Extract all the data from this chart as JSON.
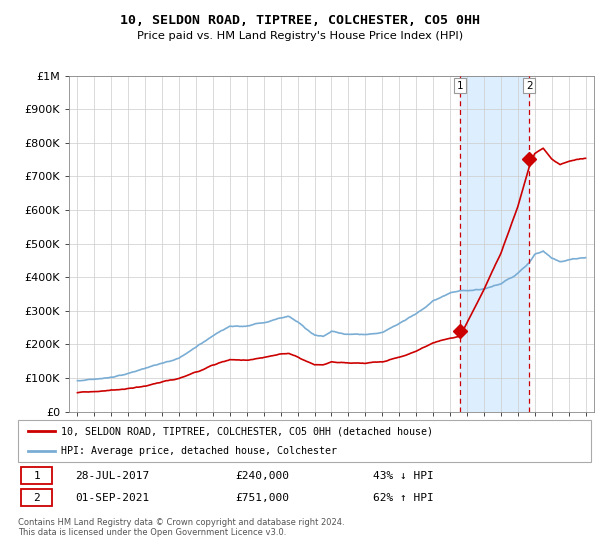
{
  "title": "10, SELDON ROAD, TIPTREE, COLCHESTER, CO5 0HH",
  "subtitle": "Price paid vs. HM Land Registry's House Price Index (HPI)",
  "legend_label_red": "10, SELDON ROAD, TIPTREE, COLCHESTER, CO5 0HH (detached house)",
  "legend_label_blue": "HPI: Average price, detached house, Colchester",
  "annotation1_date": "28-JUL-2017",
  "annotation1_price": "£240,000",
  "annotation1_hpi": "43% ↓ HPI",
  "annotation2_date": "01-SEP-2021",
  "annotation2_price": "£751,000",
  "annotation2_hpi": "62% ↑ HPI",
  "footer": "Contains HM Land Registry data © Crown copyright and database right 2024.\nThis data is licensed under the Open Government Licence v3.0.",
  "hpi_color": "#7aadd4",
  "price_color": "#cc0000",
  "vline_color": "#cc0000",
  "shade_color": "#ddeeff",
  "ylim": [
    0,
    1000000
  ],
  "ytick_labels": [
    "£0",
    "£100K",
    "£200K",
    "£300K",
    "£400K",
    "£500K",
    "£600K",
    "£700K",
    "£800K",
    "£900K",
    "£1M"
  ],
  "sale1_x": 2017.57,
  "sale1_y": 240000,
  "sale2_x": 2021.67,
  "sale2_y": 751000,
  "xmin": 1995.0,
  "xmax": 2025.5
}
